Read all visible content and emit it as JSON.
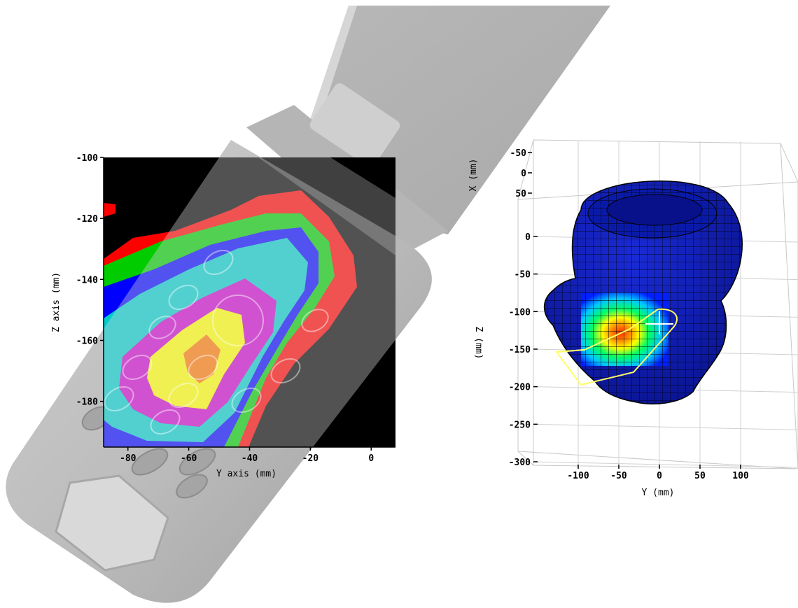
{
  "chart_data": [
    {
      "type": "heatmap",
      "title": "",
      "xlabel": "Y axis (mm)",
      "ylabel": "Z axis (mm)",
      "x_ticks": [
        -80,
        -60,
        -40,
        -20,
        0
      ],
      "y_ticks": [
        -100,
        -120,
        -140,
        -160,
        -180
      ],
      "xlim": [
        -88,
        8
      ],
      "ylim": [
        -100,
        -195
      ],
      "contour_levels": [
        {
          "level": 1,
          "color": "#ff0000"
        },
        {
          "level": 2,
          "color": "#00cc00"
        },
        {
          "level": 3,
          "color": "#0000ff"
        },
        {
          "level": 4,
          "color": "#00cccc"
        },
        {
          "level": 5,
          "color": "#cc00cc"
        },
        {
          "level": 6,
          "color": "#ffff00"
        },
        {
          "level": 7,
          "color": "#ff7700"
        }
      ],
      "background_color": "#000000",
      "overlay": "phone-keypad-photo"
    },
    {
      "type": "surface3d",
      "title": "",
      "xlabel": "Y (mm)",
      "ylabel": "Z (mm)",
      "zlabel": "X (mm)",
      "x_ticks": [
        -100,
        -50,
        0,
        50,
        100
      ],
      "y_ticks": [
        -300,
        -250,
        -200,
        -150,
        -100,
        -50,
        0
      ],
      "z_ticks": [
        -50,
        0,
        50
      ],
      "surface_color": "#0000cc",
      "mesh_color": "#000000",
      "object": "head-phantom",
      "hotspot_colors": [
        "#0000ff",
        "#00ccff",
        "#00ff66",
        "#ffff00",
        "#ff6600",
        "#ff0000"
      ],
      "outline_color": "#ffff66"
    }
  ]
}
